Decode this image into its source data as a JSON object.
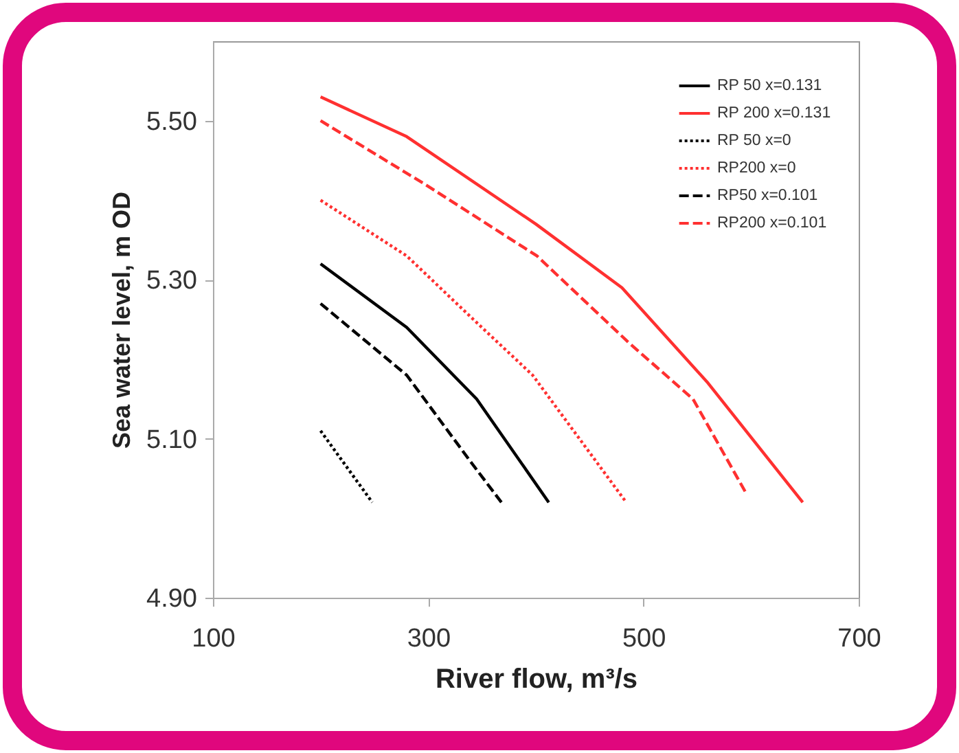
{
  "chart_data": {
    "type": "line",
    "xlabel": "River flow, m³/s",
    "ylabel": "Sea water level, m OD",
    "xlim": [
      100,
      700
    ],
    "ylim": [
      4.9,
      5.6
    ],
    "xticks": [
      100,
      300,
      500,
      700
    ],
    "yticks": [
      {
        "value": 4.9,
        "label": "4.90"
      },
      {
        "value": 5.1,
        "label": "5.10"
      },
      {
        "value": 5.3,
        "label": "5.30"
      },
      {
        "value": 5.5,
        "label": "5.50"
      }
    ],
    "grid": false,
    "legend": "top right",
    "marker": "none",
    "series": [
      {
        "name": "RP 50 x=0.131",
        "color": "#000000",
        "line_style": "solid",
        "x": [
          200,
          280,
          345,
          412
        ],
        "values": [
          5.32,
          5.24,
          5.15,
          5.02
        ]
      },
      {
        "name": "RP 200 x=0.131",
        "color": "#ff3030",
        "line_style": "solid",
        "x": [
          200,
          280,
          400,
          480,
          560,
          648
        ],
        "values": [
          5.53,
          5.48,
          5.37,
          5.29,
          5.17,
          5.02
        ]
      },
      {
        "name": "RP 50 x=0",
        "color": "#000000",
        "line_style": "dotted",
        "x": [
          200,
          248
        ],
        "values": [
          5.11,
          5.02
        ]
      },
      {
        "name": "RP200 x=0",
        "color": "#ff3030",
        "line_style": "dotted",
        "x": [
          200,
          280,
          342,
          397,
          484
        ],
        "values": [
          5.4,
          5.33,
          5.25,
          5.18,
          5.02
        ]
      },
      {
        "name": "RP50 x=0.101",
        "color": "#000000",
        "line_style": "dashed",
        "x": [
          200,
          280,
          340,
          368
        ],
        "values": [
          5.27,
          5.18,
          5.07,
          5.02
        ]
      },
      {
        "name": "RP200 x=0.101",
        "color": "#ff3030",
        "line_style": "dashed",
        "x": [
          200,
          297,
          401,
          487,
          546,
          596
        ],
        "values": [
          5.5,
          5.42,
          5.33,
          5.22,
          5.15,
          5.03
        ]
      }
    ]
  }
}
